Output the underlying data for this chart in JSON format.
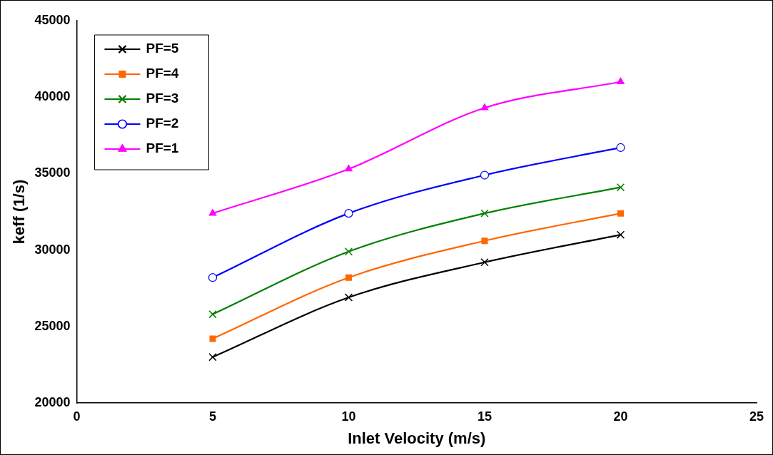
{
  "chart_data": {
    "type": "line",
    "xlabel": "Inlet Velocity (m/s)",
    "ylabel": "keff (1/s)",
    "x": [
      5,
      10,
      15,
      20
    ],
    "xlim": [
      0,
      25
    ],
    "xticks": [
      0,
      5,
      10,
      15,
      20,
      25
    ],
    "ylim": [
      20000,
      45000
    ],
    "yticks": [
      20000,
      25000,
      30000,
      35000,
      40000,
      45000
    ],
    "grid": false,
    "legend": "top left",
    "line_style": "solid",
    "series": [
      {
        "name": "PF=5",
        "color": "#000000",
        "marker": "cross",
        "values": [
          23000,
          26900,
          29200,
          31000
        ]
      },
      {
        "name": "PF=4",
        "color": "#ff6600",
        "marker": "square",
        "values": [
          24200,
          28200,
          30600,
          32400
        ]
      },
      {
        "name": "PF=3",
        "color": "#008000",
        "marker": "cross",
        "values": [
          25800,
          29900,
          32400,
          34100
        ]
      },
      {
        "name": "PF=2",
        "color": "#0000ff",
        "marker": "circle",
        "values": [
          28200,
          32400,
          34900,
          36700
        ]
      },
      {
        "name": "PF=1",
        "color": "#ff00ff",
        "marker": "triangle",
        "values": [
          32400,
          35300,
          39300,
          41000
        ]
      }
    ]
  }
}
